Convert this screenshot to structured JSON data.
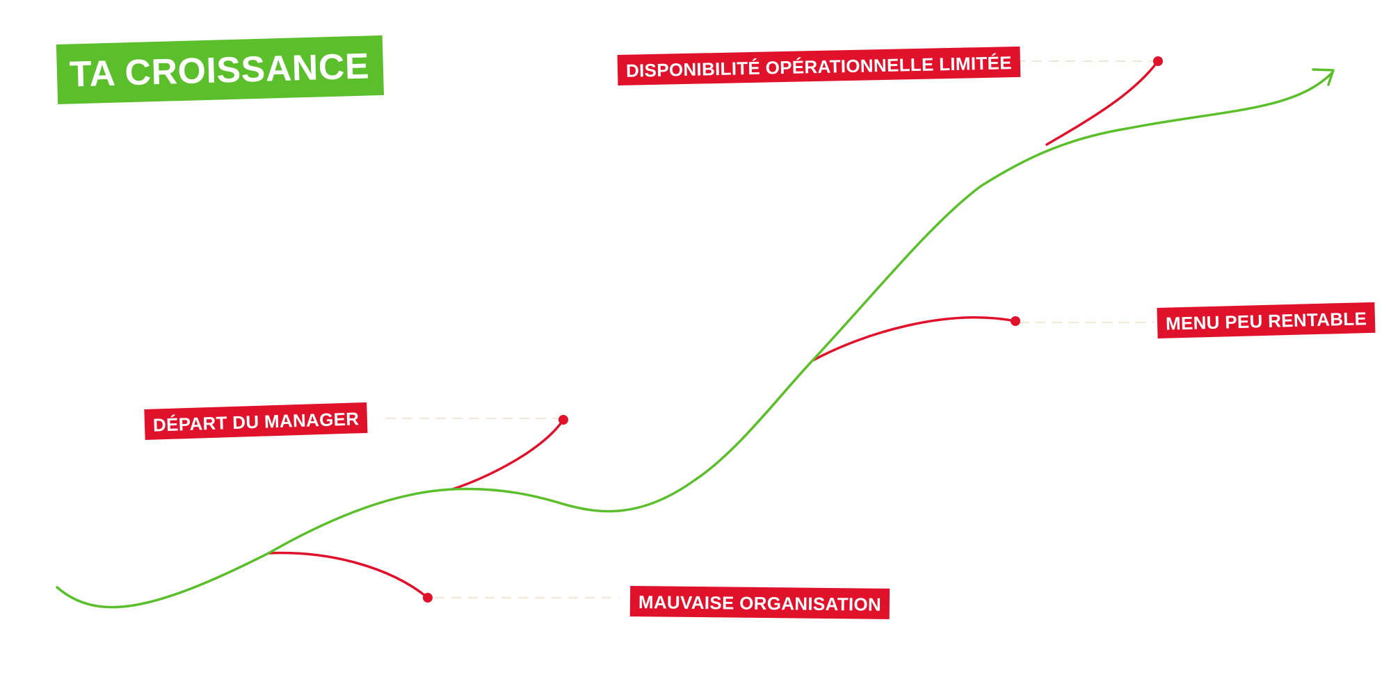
{
  "title": "TA CROISSANCE",
  "labels": [
    "DISPONIBILITÉ OPÉRATIONNELLE LIMITÉE",
    "MENU PEU RENTABLE",
    "DÉPART DU MANAGER",
    "MAUVAISE ORGANISATION"
  ],
  "colors": {
    "growth_green": "#5abf2a",
    "obstacle_red": "#e0112b",
    "background": "#ffffff",
    "dash": "#f3e6d6"
  }
}
